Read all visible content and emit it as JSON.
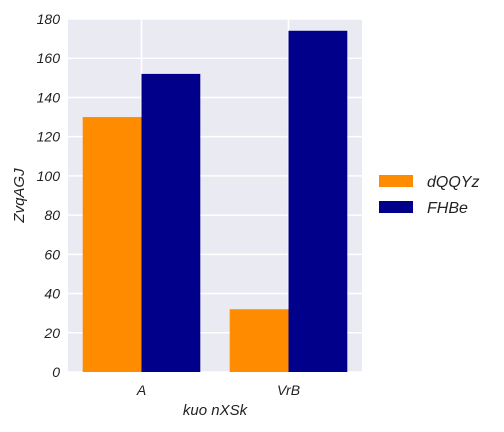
{
  "chart_data": {
    "type": "bar",
    "categories": [
      "A",
      "VrB"
    ],
    "series": [
      {
        "name": "dQQYz",
        "color": "#FF8C00",
        "values": [
          130,
          32
        ]
      },
      {
        "name": "FHBe",
        "color": "#00008B",
        "values": [
          152,
          174
        ]
      }
    ],
    "xlabel": "kuo nXSk",
    "ylabel": "ZvqAGJ",
    "ylim": [
      0,
      180
    ],
    "yticks": [
      0,
      20,
      40,
      60,
      80,
      100,
      120,
      140,
      160,
      180
    ],
    "grid": true,
    "legend_position": "right",
    "background_color": "#EAEAF2",
    "grid_color": "#FFFFFF"
  }
}
